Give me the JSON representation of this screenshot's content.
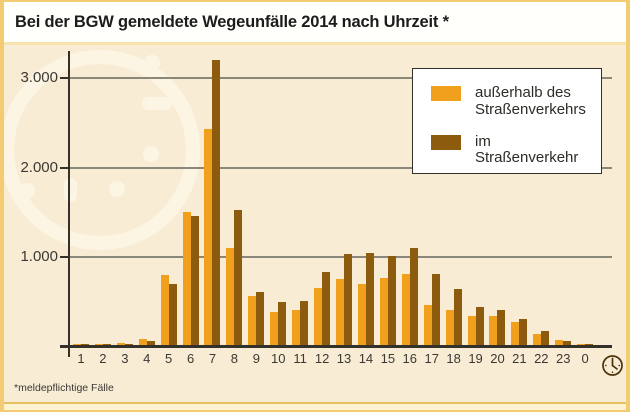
{
  "title": "Bei der BGW gemeldete Wegeunfälle 2014 nach Uhrzeit *",
  "footnote": "*meldepflichtige Fälle",
  "colors": {
    "frame": "#f2cb72",
    "title_bg": "#fffffb",
    "chart_bg": "#f9ecd5",
    "watermark": "#fdf5e4",
    "orange": "#f0a01d",
    "brown": "#8c5b0e",
    "axis": "#33312a",
    "gridline": "#8a887b",
    "text": "#3b3933",
    "bottom_strip": "#fdf3d0"
  },
  "icons": {
    "x_axis_end": "clock-icon",
    "background": "clock-watermark-icon"
  },
  "legend": {
    "items": [
      {
        "label": "außerhalb des Straßenverkehrs",
        "color": "#f0a01d"
      },
      {
        "label": "im Straßenverkehr",
        "color": "#8c5b0e"
      }
    ]
  },
  "y_axis": {
    "tick_3000": "3.000",
    "tick_2000": "2.000",
    "tick_1000": "1.000"
  },
  "chart_data": {
    "type": "bar",
    "title": "Bei der BGW gemeldete Wegeunfälle 2014 nach Uhrzeit *",
    "categories": [
      "1",
      "2",
      "3",
      "4",
      "5",
      "6",
      "7",
      "8",
      "9",
      "10",
      "11",
      "12",
      "13",
      "14",
      "15",
      "16",
      "17",
      "18",
      "19",
      "20",
      "21",
      "22",
      "23",
      "0"
    ],
    "series": [
      {
        "name": "außerhalb des Straßenverkehrs",
        "color": "#f0a01d",
        "values": [
          10,
          15,
          20,
          70,
          790,
          1490,
          2430,
          1090,
          550,
          370,
          390,
          640,
          740,
          680,
          750,
          800,
          450,
          390,
          330,
          330,
          260,
          120,
          60,
          15
        ]
      },
      {
        "name": "im Straßenverkehr",
        "color": "#8c5b0e",
        "values": [
          10,
          12,
          12,
          40,
          680,
          1450,
          3200,
          1520,
          600,
          480,
          490,
          815,
          1020,
          1030,
          1000,
          1090,
          800,
          630,
          430,
          390,
          290,
          160,
          40,
          10
        ]
      }
    ],
    "ylim": [
      0,
      3300
    ],
    "yticks": [
      1000,
      2000,
      3000
    ],
    "ytick_labels": [
      "1.000",
      "2.000",
      "3.000"
    ],
    "xlabel": "",
    "ylabel": "",
    "grid": true,
    "legend_position": "top-right"
  }
}
